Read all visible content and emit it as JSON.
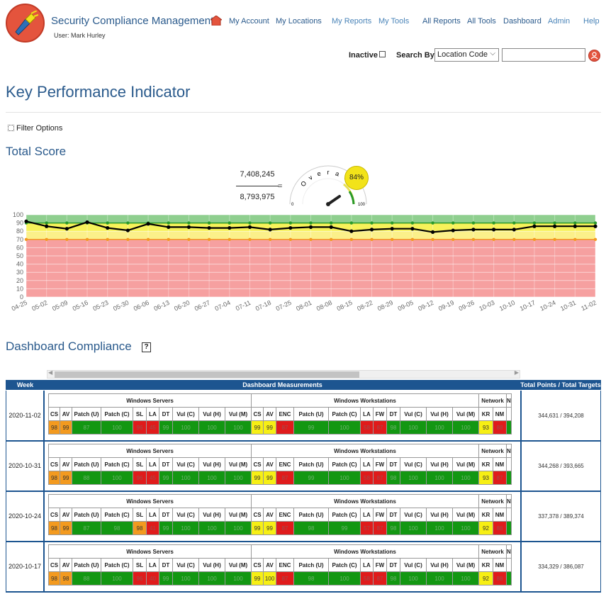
{
  "header": {
    "app_title": "Security Compliance Management",
    "user_line": "User: Mark Hurley",
    "nav": [
      "My Account",
      "My Locations",
      "My Reports",
      "My Tools",
      "All Reports",
      "All Tools",
      "Dashboard",
      "Admin",
      "Help"
    ]
  },
  "search": {
    "inactive_label": "Inactive",
    "search_by_label": "Search By",
    "search_by_value": "Location Code",
    "input_value": ""
  },
  "page_title": "Key Performance Indicator",
  "filter_options_label": "Filter Options",
  "total_score": {
    "title": "Total Score",
    "numerator": "7,408,245",
    "denominator": "8,793,975",
    "equals": "=",
    "gauge_label": "Overall",
    "gauge_min": "0",
    "gauge_max": "100",
    "percent": "84%"
  },
  "chart_data": {
    "type": "line",
    "categories": [
      "04-25",
      "05-02",
      "05-09",
      "05-16",
      "05-23",
      "05-30",
      "06-06",
      "06-13",
      "06-20",
      "06-27",
      "07-04",
      "07-11",
      "07-18",
      "07-25",
      "08-01",
      "08-08",
      "08-15",
      "08-22",
      "08-29",
      "09-05",
      "09-12",
      "09-19",
      "09-26",
      "10-03",
      "10-10",
      "10-17",
      "10-24",
      "10-31",
      "11-02"
    ],
    "series": [
      {
        "values": [
          92,
          86,
          83,
          91,
          84,
          81,
          89,
          85,
          85,
          84,
          84,
          85,
          82,
          84,
          85,
          85,
          80,
          82,
          83,
          83,
          79,
          81,
          82,
          82,
          82,
          86,
          86,
          86,
          86
        ],
        "color": "#000000"
      },
      {
        "values": [
          90,
          90,
          90,
          90,
          90,
          90,
          90,
          90,
          90,
          90,
          90,
          90,
          90,
          90,
          90,
          90,
          90,
          90,
          90,
          90,
          90,
          90,
          90,
          90,
          90,
          90,
          90,
          90,
          90
        ],
        "color": "#2a9a2a"
      },
      {
        "values": [
          70,
          70,
          70,
          70,
          70,
          70,
          70,
          70,
          70,
          70,
          70,
          70,
          70,
          70,
          70,
          70,
          70,
          70,
          70,
          70,
          70,
          70,
          70,
          70,
          70,
          70,
          70,
          70,
          70
        ],
        "color": "#f39a1f"
      }
    ],
    "bands": [
      {
        "from": 0,
        "to": 70,
        "color": "#f6a0a0"
      },
      {
        "from": 70,
        "to": 80,
        "color": "#fbf08a"
      },
      {
        "from": 80,
        "to": 90,
        "color": "#f7f25a"
      },
      {
        "from": 90,
        "to": 100,
        "color": "#8fcf8f"
      }
    ],
    "ylim": [
      0,
      100
    ],
    "yticks": [
      0,
      10,
      20,
      30,
      40,
      50,
      60,
      70,
      80,
      90,
      100
    ]
  },
  "dashboard": {
    "title": "Dashboard Compliance",
    "help_glyph": "?",
    "col_week": "Week",
    "col_measurements": "Dashboard Measurements",
    "col_totals": "Total Points / Total Targets",
    "groups": {
      "win_servers": "Windows Servers",
      "win_workstations": "Windows Workstations",
      "network": "Network",
      "more": "N"
    },
    "server_headers": [
      "CS",
      "AV",
      "Patch (U)",
      "Patch (C)",
      "SL",
      "LA",
      "DT",
      "Vul (C)",
      "Vul (H)",
      "Vul (M)"
    ],
    "ws_headers": [
      "CS",
      "AV",
      "ENC",
      "Patch (U)",
      "Patch (C)",
      "LA",
      "FW",
      "DT",
      "Vul (C)",
      "Vul (H)",
      "Vul (M)"
    ],
    "net_headers": [
      "KR",
      "NM"
    ],
    "rows": [
      {
        "week": "2020-11-02",
        "totals": "344,631 / 394,208",
        "server": [
          "98",
          "99",
          "87",
          "100",
          "96",
          "45",
          "99",
          "100",
          "100",
          "100"
        ],
        "server_colors": [
          "o",
          "o",
          "g",
          "g",
          "r",
          "r",
          "g",
          "g",
          "g",
          "g"
        ],
        "ws": [
          "99",
          "99",
          "87",
          "99",
          "100",
          "58",
          "87",
          "98",
          "100",
          "100",
          "100"
        ],
        "ws_colors": [
          "y",
          "y",
          "r",
          "g",
          "g",
          "r",
          "r",
          "g",
          "g",
          "g",
          "g"
        ],
        "net": [
          "93",
          "88"
        ],
        "net_colors": [
          "y",
          "r"
        ]
      },
      {
        "week": "2020-10-31",
        "totals": "344,268 / 393,665",
        "server": [
          "98",
          "99",
          "88",
          "100",
          "96",
          "45",
          "99",
          "100",
          "100",
          "100"
        ],
        "server_colors": [
          "o",
          "o",
          "g",
          "g",
          "r",
          "r",
          "g",
          "g",
          "g",
          "g"
        ],
        "ws": [
          "99",
          "99",
          "87",
          "99",
          "100",
          "58",
          "87",
          "98",
          "100",
          "100",
          "100"
        ],
        "ws_colors": [
          "y",
          "y",
          "r",
          "g",
          "g",
          "r",
          "r",
          "g",
          "g",
          "g",
          "g"
        ],
        "net": [
          "93",
          "87"
        ],
        "net_colors": [
          "y",
          "r"
        ]
      },
      {
        "week": "2020-10-24",
        "totals": "337,378 / 389,374",
        "server": [
          "98",
          "99",
          "87",
          "98",
          "98",
          "41",
          "99",
          "100",
          "100",
          "100"
        ],
        "server_colors": [
          "o",
          "o",
          "g",
          "g",
          "o",
          "r",
          "g",
          "g",
          "g",
          "g"
        ],
        "ws": [
          "99",
          "99",
          "87",
          "98",
          "99",
          "57",
          "87",
          "98",
          "100",
          "100",
          "100"
        ],
        "ws_colors": [
          "y",
          "y",
          "r",
          "g",
          "g",
          "r",
          "r",
          "g",
          "g",
          "g",
          "g"
        ],
        "net": [
          "92",
          "88"
        ],
        "net_colors": [
          "y",
          "r"
        ]
      },
      {
        "week": "2020-10-17",
        "totals": "334,329 / 386,087",
        "server": [
          "98",
          "98",
          "88",
          "100",
          "96",
          "40",
          "99",
          "100",
          "100",
          "100"
        ],
        "server_colors": [
          "o",
          "o",
          "g",
          "g",
          "r",
          "r",
          "g",
          "g",
          "g",
          "g"
        ],
        "ws": [
          "99",
          "100",
          "87",
          "98",
          "100",
          "58",
          "87",
          "98",
          "100",
          "100",
          "100"
        ],
        "ws_colors": [
          "y",
          "y",
          "r",
          "g",
          "g",
          "r",
          "r",
          "g",
          "g",
          "g",
          "g"
        ],
        "net": [
          "92",
          "88"
        ],
        "net_colors": [
          "y",
          "r"
        ]
      }
    ]
  }
}
